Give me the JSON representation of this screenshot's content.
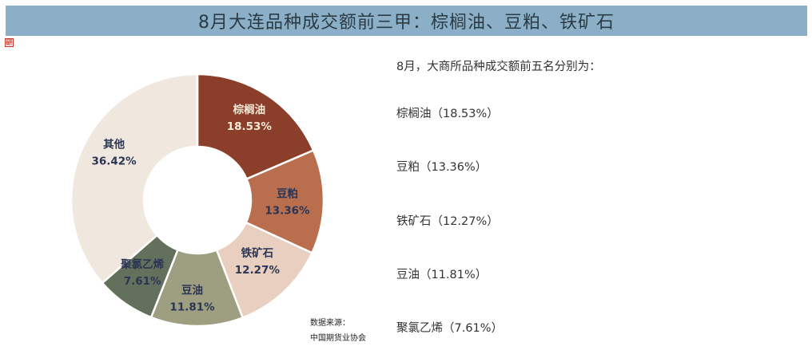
{
  "header": {
    "title": "8月大连品种成交额前三甲：棕榈油、豆粕、铁矿石"
  },
  "logo": {
    "text": "研"
  },
  "chart_data": {
    "type": "pie",
    "donut": true,
    "categories": [
      "棕榈油",
      "豆粕",
      "铁矿石",
      "豆油",
      "聚氯乙烯",
      "其他"
    ],
    "values": [
      18.53,
      13.36,
      12.27,
      11.81,
      7.61,
      36.42
    ],
    "value_labels": [
      "18.53%",
      "13.36%",
      "12.27%",
      "11.81%",
      "7.61%",
      "36.42%"
    ],
    "colors": [
      "#8b3e2a",
      "#b96f4e",
      "#e8cfbf",
      "#9e9e80",
      "#63705c",
      "#f0e8de"
    ],
    "label_colors": [
      "light",
      "dark",
      "dark",
      "dark",
      "dark",
      "dark"
    ]
  },
  "source": {
    "label": "数据来源：",
    "name": "中国期货业协会"
  },
  "summary": {
    "title": "8月，大商所品种成交额前五名分别为：",
    "items": [
      "棕榈油（18.53%）",
      "豆粕（13.36%）",
      "铁矿石（12.27%）",
      "豆油（11.81%）",
      "聚氯乙烯（7.61%）"
    ]
  }
}
